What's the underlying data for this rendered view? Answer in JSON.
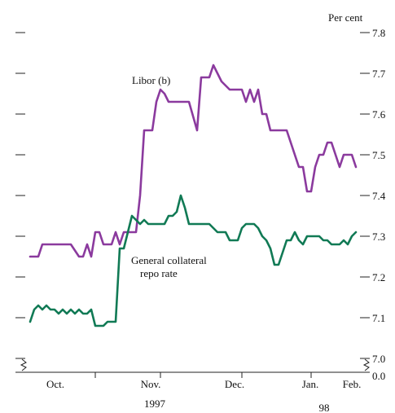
{
  "chart_data": {
    "type": "line",
    "unit_label": "Per cent",
    "y_ticks": [
      "7.8",
      "7.7",
      "7.6",
      "7.5",
      "7.4",
      "7.3",
      "7.2",
      "7.1",
      "7.0",
      "0.0"
    ],
    "ylim": [
      7.0,
      7.8
    ],
    "axis_break": true,
    "x_month_labels": [
      "Oct.",
      "Nov.",
      "Dec.",
      "Jan.",
      "Feb."
    ],
    "year_labels": [
      "1997",
      "98"
    ],
    "grid": false,
    "series": [
      {
        "name": "Libor (b)",
        "color": "#8b3a9e",
        "x": [
          0,
          2,
          3,
          5,
          8,
          10,
          12,
          13,
          14,
          15,
          16,
          17,
          18,
          19,
          20,
          21,
          22,
          23,
          25,
          26,
          27,
          28,
          30,
          31,
          32,
          33,
          34,
          35,
          36,
          37,
          38,
          39,
          41,
          42,
          43,
          44,
          45,
          46,
          47,
          48,
          49,
          50,
          51,
          52,
          53,
          54,
          55,
          56,
          57,
          58,
          59,
          60,
          61,
          62,
          63,
          64,
          65,
          66,
          67,
          68,
          69,
          70,
          71,
          72,
          73,
          74,
          75,
          76,
          77,
          78,
          79,
          80
        ],
        "values": [
          7.25,
          7.25,
          7.28,
          7.28,
          7.28,
          7.28,
          7.25,
          7.25,
          7.28,
          7.25,
          7.31,
          7.31,
          7.28,
          7.28,
          7.28,
          7.31,
          7.28,
          7.31,
          7.31,
          7.31,
          7.4,
          7.56,
          7.56,
          7.63,
          7.66,
          7.65,
          7.63,
          7.63,
          7.63,
          7.63,
          7.63,
          7.63,
          7.56,
          7.69,
          7.69,
          7.69,
          7.72,
          7.7,
          7.68,
          7.67,
          7.66,
          7.66,
          7.66,
          7.66,
          7.63,
          7.66,
          7.63,
          7.66,
          7.6,
          7.6,
          7.56,
          7.56,
          7.56,
          7.56,
          7.56,
          7.53,
          7.5,
          7.47,
          7.47,
          7.41,
          7.41,
          7.47,
          7.5,
          7.5,
          7.53,
          7.53,
          7.5,
          7.47,
          7.5,
          7.5,
          7.5,
          7.47
        ]
      },
      {
        "name": "General collateral repo rate",
        "color": "#117a55",
        "x": [
          0,
          1,
          2,
          3,
          4,
          5,
          6,
          7,
          8,
          9,
          10,
          11,
          12,
          13,
          14,
          15,
          16,
          17,
          18,
          19,
          20,
          21,
          22,
          23,
          24,
          25,
          26,
          27,
          28,
          29,
          30,
          31,
          32,
          33,
          34,
          35,
          36,
          37,
          38,
          39,
          40,
          41,
          42,
          43,
          44,
          45,
          46,
          47,
          48,
          49,
          50,
          51,
          52,
          53,
          54,
          55,
          56,
          57,
          58,
          59,
          60,
          61,
          62,
          63,
          64,
          65,
          66,
          67,
          68,
          69,
          70,
          71,
          72,
          73,
          74,
          75,
          76,
          77,
          78,
          79,
          80
        ],
        "values": [
          7.09,
          7.12,
          7.13,
          7.12,
          7.13,
          7.12,
          7.12,
          7.11,
          7.12,
          7.11,
          7.12,
          7.11,
          7.12,
          7.11,
          7.11,
          7.12,
          7.08,
          7.08,
          7.08,
          7.09,
          7.09,
          7.09,
          7.27,
          7.27,
          7.31,
          7.35,
          7.34,
          7.33,
          7.34,
          7.33,
          7.33,
          7.33,
          7.33,
          7.33,
          7.35,
          7.35,
          7.36,
          7.4,
          7.37,
          7.33,
          7.33,
          7.33,
          7.33,
          7.33,
          7.33,
          7.32,
          7.31,
          7.31,
          7.31,
          7.29,
          7.29,
          7.29,
          7.32,
          7.33,
          7.33,
          7.33,
          7.32,
          7.3,
          7.29,
          7.27,
          7.23,
          7.23,
          7.26,
          7.29,
          7.29,
          7.31,
          7.29,
          7.28,
          7.3,
          7.3,
          7.3,
          7.3,
          7.29,
          7.29,
          7.28,
          7.28,
          7.28,
          7.29,
          7.28,
          7.3,
          7.31
        ]
      }
    ]
  }
}
